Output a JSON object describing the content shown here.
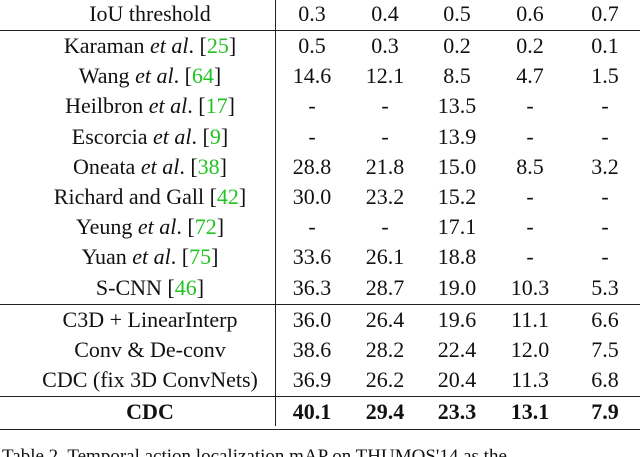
{
  "table": {
    "header": [
      "IoU threshold",
      "0.3",
      "0.4",
      "0.5",
      "0.6",
      "0.7"
    ],
    "groups": [
      {
        "rows": [
          {
            "method": [
              {
                "text": "Karaman "
              },
              {
                "text": "et al",
                "italic": true
              },
              {
                "text": ". ["
              },
              {
                "text": "25",
                "cite": true
              },
              {
                "text": "]"
              }
            ],
            "values": [
              "0.5",
              "0.3",
              "0.2",
              "0.2",
              "0.1"
            ]
          },
          {
            "method": [
              {
                "text": "Wang "
              },
              {
                "text": "et al",
                "italic": true
              },
              {
                "text": ". ["
              },
              {
                "text": "64",
                "cite": true
              },
              {
                "text": "]"
              }
            ],
            "values": [
              "14.6",
              "12.1",
              "8.5",
              "4.7",
              "1.5"
            ]
          },
          {
            "method": [
              {
                "text": "Heilbron "
              },
              {
                "text": "et al",
                "italic": true
              },
              {
                "text": ". ["
              },
              {
                "text": "17",
                "cite": true
              },
              {
                "text": "]"
              }
            ],
            "values": [
              "-",
              "-",
              "13.5",
              "-",
              "-"
            ]
          },
          {
            "method": [
              {
                "text": "Escorcia "
              },
              {
                "text": "et al",
                "italic": true
              },
              {
                "text": ". ["
              },
              {
                "text": "9",
                "cite": true
              },
              {
                "text": "]"
              }
            ],
            "values": [
              "-",
              "-",
              "13.9",
              "-",
              "-"
            ]
          },
          {
            "method": [
              {
                "text": "Oneata "
              },
              {
                "text": "et al",
                "italic": true
              },
              {
                "text": ". ["
              },
              {
                "text": "38",
                "cite": true
              },
              {
                "text": "]"
              }
            ],
            "values": [
              "28.8",
              "21.8",
              "15.0",
              "8.5",
              "3.2"
            ]
          },
          {
            "method": [
              {
                "text": "Richard and Gall ["
              },
              {
                "text": "42",
                "cite": true
              },
              {
                "text": "]"
              }
            ],
            "values": [
              "30.0",
              "23.2",
              "15.2",
              "-",
              "-"
            ]
          },
          {
            "method": [
              {
                "text": "Yeung "
              },
              {
                "text": "et al",
                "italic": true
              },
              {
                "text": ". ["
              },
              {
                "text": "72",
                "cite": true
              },
              {
                "text": "]"
              }
            ],
            "values": [
              "-",
              "-",
              "17.1",
              "-",
              "-"
            ]
          },
          {
            "method": [
              {
                "text": "Yuan "
              },
              {
                "text": "et al",
                "italic": true
              },
              {
                "text": ". ["
              },
              {
                "text": "75",
                "cite": true
              },
              {
                "text": "]"
              }
            ],
            "values": [
              "33.6",
              "26.1",
              "18.8",
              "-",
              "-"
            ]
          },
          {
            "method": [
              {
                "text": "S-CNN ["
              },
              {
                "text": "46",
                "cite": true
              },
              {
                "text": "]"
              }
            ],
            "values": [
              "36.3",
              "28.7",
              "19.0",
              "10.3",
              "5.3"
            ]
          }
        ]
      },
      {
        "rows": [
          {
            "method": [
              {
                "text": "C3D + LinearInterp"
              }
            ],
            "values": [
              "36.0",
              "26.4",
              "19.6",
              "11.1",
              "6.6"
            ]
          },
          {
            "method": [
              {
                "text": "Conv & De-conv"
              }
            ],
            "values": [
              "38.6",
              "28.2",
              "22.4",
              "12.0",
              "7.5"
            ]
          },
          {
            "method": [
              {
                "text": "CDC (fix 3D ConvNets)"
              }
            ],
            "values": [
              "36.9",
              "26.2",
              "20.4",
              "11.3",
              "6.8"
            ]
          }
        ]
      },
      {
        "bold": true,
        "rows": [
          {
            "method": [
              {
                "text": "CDC"
              }
            ],
            "values": [
              "40.1",
              "29.4",
              "23.3",
              "13.1",
              "7.9"
            ]
          }
        ]
      }
    ],
    "caption": "Table 2. Temporal action localization mAP on THUMOS'14 as the"
  }
}
